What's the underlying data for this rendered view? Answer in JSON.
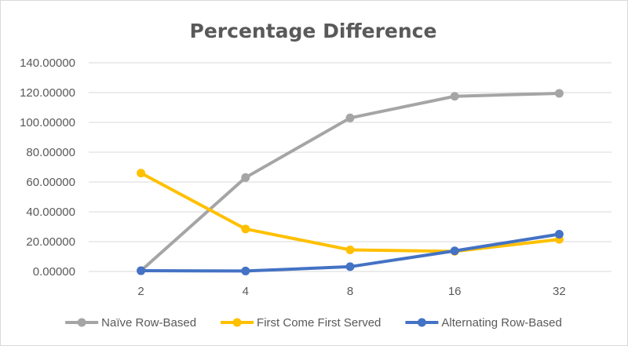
{
  "chart_data": {
    "type": "line",
    "title": "Percentage Difference",
    "xlabel": "",
    "ylabel": "",
    "categories": [
      "2",
      "4",
      "8",
      "16",
      "32"
    ],
    "y_tick_labels": [
      "0.00000",
      "20.00000",
      "40.00000",
      "60.00000",
      "80.00000",
      "100.00000",
      "120.00000",
      "140.00000"
    ],
    "ylim": [
      0,
      140
    ],
    "y_tick_step": 20,
    "grid": true,
    "legend_position": "bottom",
    "series": [
      {
        "name": "Naïve Row-Based",
        "color": "#a5a5a5",
        "values": [
          0.5,
          63,
          103,
          117.5,
          119.5
        ]
      },
      {
        "name": "First Come First Served",
        "color": "#ffc000",
        "values": [
          66,
          28.5,
          14.5,
          13.5,
          21.5
        ]
      },
      {
        "name": "Alternating Row-Based",
        "color": "#4472c4",
        "values": [
          0.5,
          0.3,
          3.2,
          13.8,
          25
        ]
      }
    ]
  }
}
